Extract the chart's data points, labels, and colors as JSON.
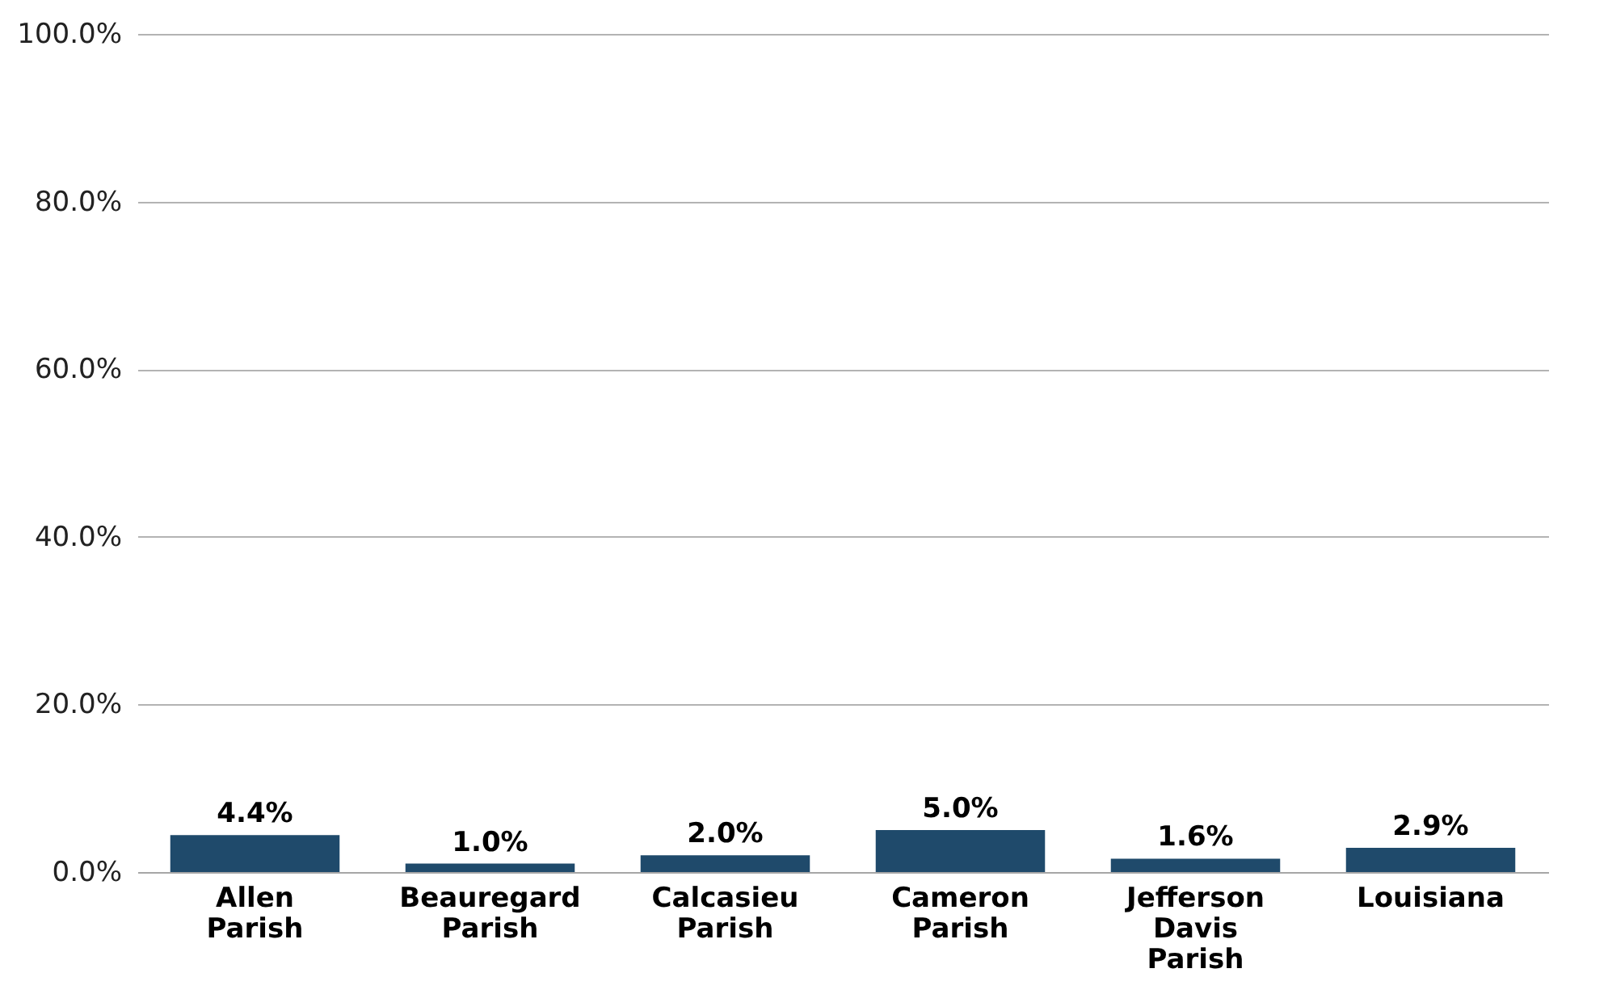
{
  "chart_data": {
    "type": "bar",
    "categories": [
      "Allen Parish",
      "Beauregard Parish",
      "Calcasieu Parish",
      "Cameron Parish",
      "Jefferson Davis Parish",
      "Louisiana"
    ],
    "values": [
      4.4,
      1.0,
      2.0,
      5.0,
      1.6,
      2.9
    ],
    "color": "#1f4a6b",
    "value_labels": [
      "4.4%",
      "1.0%",
      "2.0%",
      "5.0%",
      "1.6%",
      "2.9%"
    ],
    "ylim": [
      0,
      100
    ],
    "yticks": [
      {
        "value": 0,
        "label": "0.0%"
      },
      {
        "value": 20,
        "label": "20.0%"
      },
      {
        "value": 40,
        "label": "40.0%"
      },
      {
        "value": 60,
        "label": "60.0%"
      },
      {
        "value": 80,
        "label": "80.0%"
      },
      {
        "value": 100,
        "label": "100.0%"
      }
    ],
    "grid": "y"
  }
}
